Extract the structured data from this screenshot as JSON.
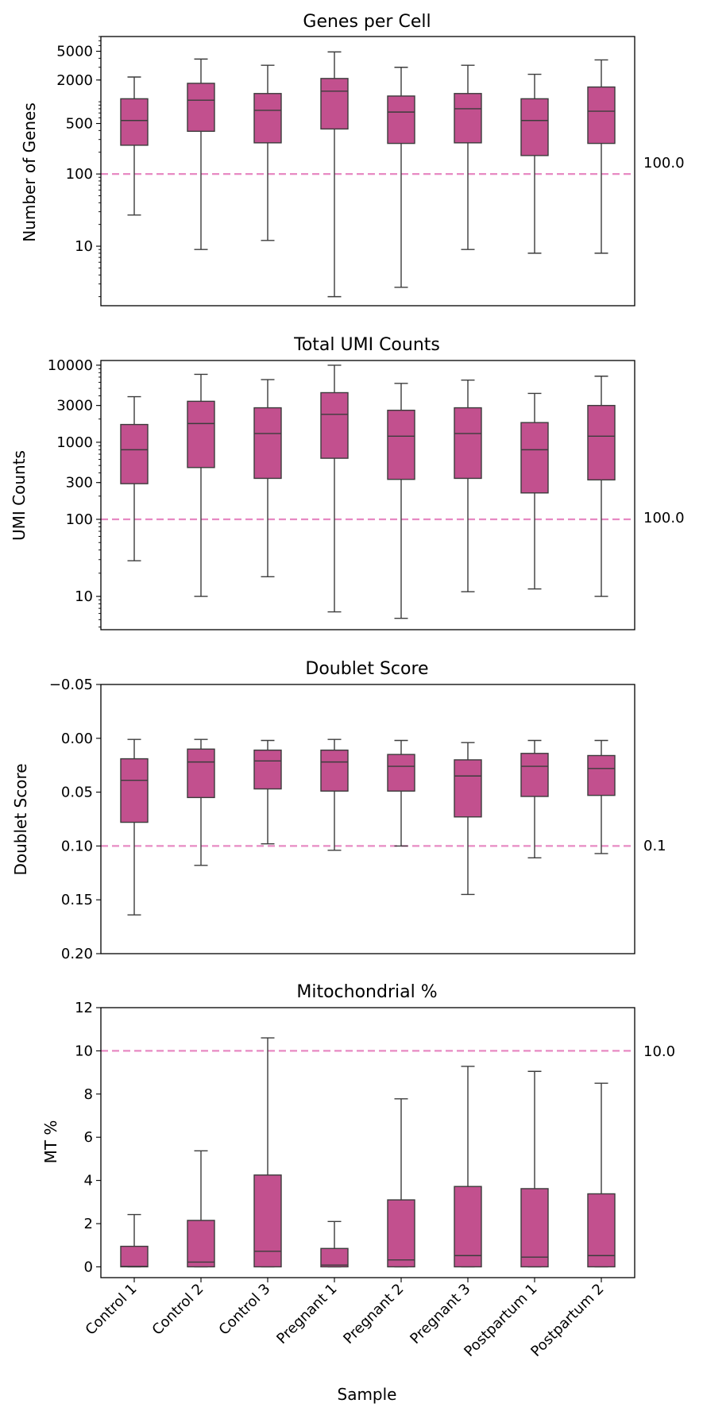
{
  "figure": {
    "xlabel": "Sample",
    "categories": [
      "Control 1",
      "Control 2",
      "Control 3",
      "Pregnant 1",
      "Pregnant 2",
      "Pregnant 3",
      "Postpartum 1",
      "Postpartum 2"
    ]
  },
  "colors": {
    "box_fill": "#C2508E",
    "box_edge": "#3C3C3C",
    "threshold_line": "#E78AC3",
    "axes": "#000000"
  },
  "chart_data": [
    {
      "type": "box",
      "title": "Genes per Cell",
      "ylabel": "Number of Genes",
      "yscale": "log",
      "ylim": [
        1.5,
        8000
      ],
      "yticks": [
        10,
        100,
        500,
        2000,
        5000
      ],
      "ytick_labels": [
        "10",
        "100",
        "500",
        "2000",
        "5000"
      ],
      "threshold": 100,
      "threshold_label": "100.0",
      "categories": [
        "Control 1",
        "Control 2",
        "Control 3",
        "Pregnant 1",
        "Pregnant 2",
        "Pregnant 3",
        "Postpartum 1",
        "Postpartum 2"
      ],
      "boxes": [
        {
          "whislo": 27,
          "q1": 250,
          "med": 550,
          "q3": 1100,
          "whishi": 2200
        },
        {
          "whislo": 9,
          "q1": 390,
          "med": 1050,
          "q3": 1800,
          "whishi": 3900
        },
        {
          "whislo": 12,
          "q1": 270,
          "med": 760,
          "q3": 1300,
          "whishi": 3200
        },
        {
          "whislo": 2,
          "q1": 420,
          "med": 1400,
          "q3": 2100,
          "whishi": 4900
        },
        {
          "whislo": 2.7,
          "q1": 265,
          "med": 720,
          "q3": 1200,
          "whishi": 3000
        },
        {
          "whislo": 9,
          "q1": 270,
          "med": 800,
          "q3": 1300,
          "whishi": 3200
        },
        {
          "whislo": 8,
          "q1": 180,
          "med": 550,
          "q3": 1100,
          "whishi": 2400
        },
        {
          "whislo": 8,
          "q1": 265,
          "med": 740,
          "q3": 1600,
          "whishi": 3800
        }
      ]
    },
    {
      "type": "box",
      "title": "Total UMI Counts",
      "ylabel": "UMI Counts",
      "yscale": "log",
      "ylim": [
        3.7,
        11500
      ],
      "yticks": [
        10,
        100,
        300,
        1000,
        3000,
        10000
      ],
      "ytick_labels": [
        "10",
        "100",
        "300",
        "1000",
        "3000",
        "10000"
      ],
      "threshold": 100,
      "threshold_label": "100.0",
      "categories": [
        "Control 1",
        "Control 2",
        "Control 3",
        "Pregnant 1",
        "Pregnant 2",
        "Pregnant 3",
        "Postpartum 1",
        "Postpartum 2"
      ],
      "boxes": [
        {
          "whislo": 29,
          "q1": 290,
          "med": 800,
          "q3": 1700,
          "whishi": 3900
        },
        {
          "whislo": 10,
          "q1": 470,
          "med": 1750,
          "q3": 3400,
          "whishi": 7600
        },
        {
          "whislo": 18,
          "q1": 340,
          "med": 1300,
          "q3": 2800,
          "whishi": 6500
        },
        {
          "whislo": 6.3,
          "q1": 620,
          "med": 2300,
          "q3": 4400,
          "whishi": 10000
        },
        {
          "whislo": 5.2,
          "q1": 330,
          "med": 1200,
          "q3": 2600,
          "whishi": 5800
        },
        {
          "whislo": 11.5,
          "q1": 340,
          "med": 1300,
          "q3": 2800,
          "whishi": 6400
        },
        {
          "whislo": 12.5,
          "q1": 220,
          "med": 800,
          "q3": 1800,
          "whishi": 4300
        },
        {
          "whislo": 10,
          "q1": 325,
          "med": 1200,
          "q3": 3000,
          "whishi": 7200
        }
      ]
    },
    {
      "type": "box",
      "title": "Doublet Score",
      "ylabel": "Doublet Score",
      "yscale": "linear",
      "yinverted": true,
      "ylim": [
        -0.05,
        0.2
      ],
      "yticks": [
        -0.05,
        0.0,
        0.05,
        0.1,
        0.15,
        0.2
      ],
      "ytick_labels": [
        "−0.05",
        "0.00",
        "0.05",
        "0.10",
        "0.15",
        "0.20"
      ],
      "threshold": 0.1,
      "threshold_label": "0.1",
      "categories": [
        "Control 1",
        "Control 2",
        "Control 3",
        "Pregnant 1",
        "Pregnant 2",
        "Pregnant 3",
        "Postpartum 1",
        "Postpartum 2"
      ],
      "boxes": [
        {
          "whislo": 0.001,
          "q1": 0.019,
          "med": 0.039,
          "q3": 0.078,
          "whishi": 0.164
        },
        {
          "whislo": 0.001,
          "q1": 0.01,
          "med": 0.022,
          "q3": 0.055,
          "whishi": 0.118
        },
        {
          "whislo": 0.002,
          "q1": 0.011,
          "med": 0.021,
          "q3": 0.047,
          "whishi": 0.098
        },
        {
          "whislo": 0.001,
          "q1": 0.011,
          "med": 0.022,
          "q3": 0.049,
          "whishi": 0.104
        },
        {
          "whislo": 0.002,
          "q1": 0.015,
          "med": 0.026,
          "q3": 0.049,
          "whishi": 0.1
        },
        {
          "whislo": 0.004,
          "q1": 0.02,
          "med": 0.035,
          "q3": 0.073,
          "whishi": 0.145
        },
        {
          "whislo": 0.002,
          "q1": 0.014,
          "med": 0.026,
          "q3": 0.054,
          "whishi": 0.111
        },
        {
          "whislo": 0.002,
          "q1": 0.016,
          "med": 0.028,
          "q3": 0.053,
          "whishi": 0.107
        }
      ]
    },
    {
      "type": "box",
      "title": "Mitochondrial %",
      "ylabel": "MT %",
      "yscale": "linear",
      "ylim": [
        -0.5,
        12
      ],
      "yticks": [
        0,
        2,
        4,
        6,
        8,
        10,
        12
      ],
      "ytick_labels": [
        "0",
        "2",
        "4",
        "6",
        "8",
        "10",
        "12"
      ],
      "threshold": 10,
      "threshold_label": "10.0",
      "categories": [
        "Control 1",
        "Control 2",
        "Control 3",
        "Pregnant 1",
        "Pregnant 2",
        "Pregnant 3",
        "Postpartum 1",
        "Postpartum 2"
      ],
      "boxes": [
        {
          "whislo": 0,
          "q1": 0,
          "med": 0.02,
          "q3": 0.95,
          "whishi": 2.42
        },
        {
          "whislo": 0,
          "q1": 0,
          "med": 0.22,
          "q3": 2.15,
          "whishi": 5.37
        },
        {
          "whislo": 0,
          "q1": 0,
          "med": 0.72,
          "q3": 4.25,
          "whishi": 10.6
        },
        {
          "whislo": 0,
          "q1": 0,
          "med": 0.08,
          "q3": 0.85,
          "whishi": 2.1
        },
        {
          "whislo": 0,
          "q1": 0,
          "med": 0.32,
          "q3": 3.1,
          "whishi": 7.78
        },
        {
          "whislo": 0,
          "q1": 0,
          "med": 0.52,
          "q3": 3.72,
          "whishi": 9.28
        },
        {
          "whislo": 0,
          "q1": 0,
          "med": 0.45,
          "q3": 3.62,
          "whishi": 9.05
        },
        {
          "whislo": 0,
          "q1": 0,
          "med": 0.52,
          "q3": 3.38,
          "whishi": 8.5
        }
      ]
    }
  ]
}
